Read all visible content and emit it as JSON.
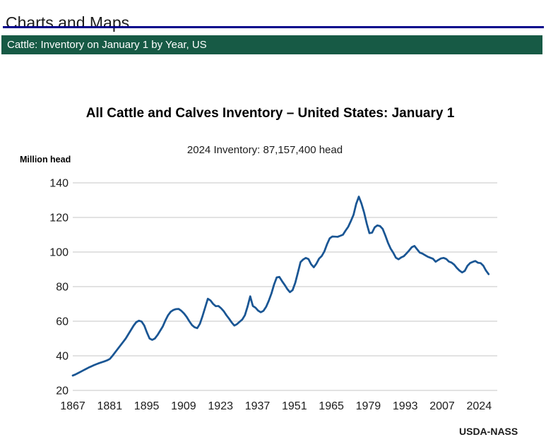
{
  "page": {
    "header_title": "Charts and Maps",
    "banner_text": "Cattle: Inventory on January 1 by Year, US",
    "credit": "USDA-NASS"
  },
  "colors": {
    "rule_navy": "#00008B",
    "banner_green": "#175A45",
    "banner_text": "#FFFFFF",
    "line_blue": "#1A5694",
    "gridline_gray": "#C4C4C4",
    "tick_text": "#1C1C1C"
  },
  "chart_data": {
    "type": "line",
    "title": "All Cattle and Calves Inventory – United States: January 1",
    "subtitle": "2024 Inventory: 87,157,400 head",
    "xlabel": "",
    "ylabel": "Million head",
    "ylim": [
      20,
      140
    ],
    "y_ticks": [
      140,
      120,
      100,
      80,
      60,
      40,
      20
    ],
    "x_tick_labels": [
      "1867",
      "1881",
      "1895",
      "1909",
      "1923",
      "1937",
      "1951",
      "1965",
      "1979",
      "1993",
      "2007",
      "2024"
    ],
    "grid": "horizontal-only",
    "legend": "none",
    "series": [
      {
        "name": "All cattle and calves inventory (million head)",
        "x_start_year": 1867,
        "x_end_year": 2024,
        "x_step": 1,
        "values": [
          28.6,
          29.2,
          30.0,
          30.8,
          31.6,
          32.4,
          33.2,
          33.9,
          34.6,
          35.2,
          35.8,
          36.3,
          36.8,
          37.4,
          38.2,
          40.0,
          42.0,
          44.0,
          46.0,
          48.0,
          50.0,
          52.5,
          55.0,
          57.5,
          59.5,
          60.3,
          59.8,
          57.5,
          53.5,
          50.0,
          49.2,
          50.0,
          52.0,
          54.5,
          57.0,
          60.5,
          63.5,
          65.5,
          66.5,
          67.0,
          67.1,
          66.0,
          64.5,
          62.5,
          60.0,
          57.8,
          56.5,
          56.0,
          58.5,
          63.0,
          68.0,
          73.0,
          72.0,
          70.0,
          68.7,
          68.8,
          67.5,
          65.8,
          63.5,
          61.5,
          59.3,
          57.5,
          58.3,
          59.7,
          61.0,
          63.5,
          68.5,
          74.4,
          68.8,
          67.8,
          66.1,
          65.2,
          66.0,
          68.3,
          71.8,
          76.0,
          81.2,
          85.3,
          85.6,
          83.2,
          81.0,
          78.6,
          76.8,
          78.0,
          82.2,
          88.1,
          94.2,
          95.7,
          96.6,
          95.9,
          92.9,
          91.2,
          93.3,
          96.2,
          97.7,
          100.4,
          104.5,
          107.9,
          109.0,
          108.9,
          108.8,
          109.4,
          110.0,
          112.4,
          114.6,
          117.9,
          121.5,
          127.8,
          132.0,
          128.0,
          122.8,
          116.4,
          110.9,
          111.2,
          114.3,
          115.4,
          115.0,
          113.4,
          109.6,
          105.4,
          102.0,
          99.6,
          96.7,
          95.8,
          96.9,
          97.6,
          99.2,
          100.9,
          102.8,
          103.5,
          101.6,
          99.7,
          99.1,
          98.2,
          97.3,
          96.7,
          96.1,
          94.4,
          95.4,
          96.3,
          96.6,
          96.0,
          94.5,
          93.9,
          92.7,
          90.8,
          89.3,
          88.2,
          89.1,
          92.0,
          93.6,
          94.3,
          94.8,
          93.8,
          93.6,
          92.1,
          89.3,
          87.2
        ]
      }
    ]
  }
}
